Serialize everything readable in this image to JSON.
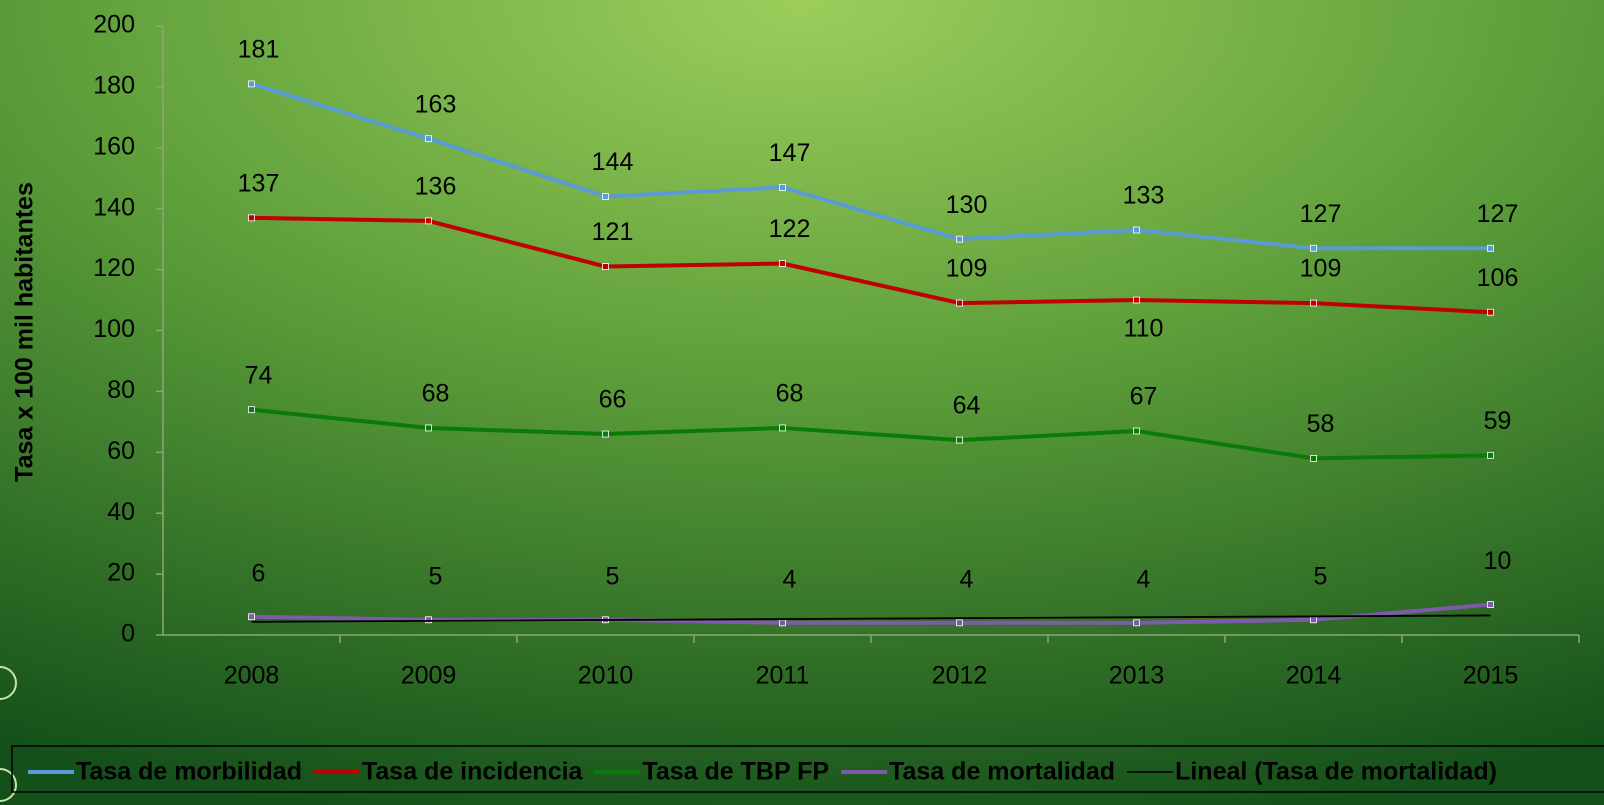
{
  "chart_data": {
    "type": "line",
    "y_label": "Tasa x 100 mil habitantes",
    "categories": [
      "2008",
      "2009",
      "2010",
      "2011",
      "2012",
      "2013",
      "2014",
      "2015"
    ],
    "series": [
      {
        "name": "Tasa de morbilidad",
        "color": "#5b9bd5",
        "values": [
          181,
          163,
          144,
          147,
          130,
          133,
          127,
          127
        ]
      },
      {
        "name": "Tasa de incidencia",
        "color": "#c00000",
        "values": [
          137,
          136,
          121,
          122,
          109,
          110,
          109,
          106
        ]
      },
      {
        "name": "Tasa de TBP FP",
        "color": "#0b7a0b",
        "values": [
          74,
          68,
          66,
          68,
          64,
          67,
          58,
          59
        ]
      },
      {
        "name": "Tasa de mortalidad",
        "color": "#7e5aa8",
        "values": [
          6,
          5,
          5,
          4,
          4,
          4,
          5,
          10
        ]
      }
    ],
    "trendline": {
      "name": "Lineal (Tasa de mortalidad)",
      "kind": "linear",
      "series": 3,
      "color": "#000000"
    },
    "ylim": [
      0,
      200
    ],
    "yticks": [
      0,
      20,
      40,
      60,
      80,
      100,
      120,
      140,
      160,
      180,
      200
    ],
    "legend": "bottom"
  }
}
